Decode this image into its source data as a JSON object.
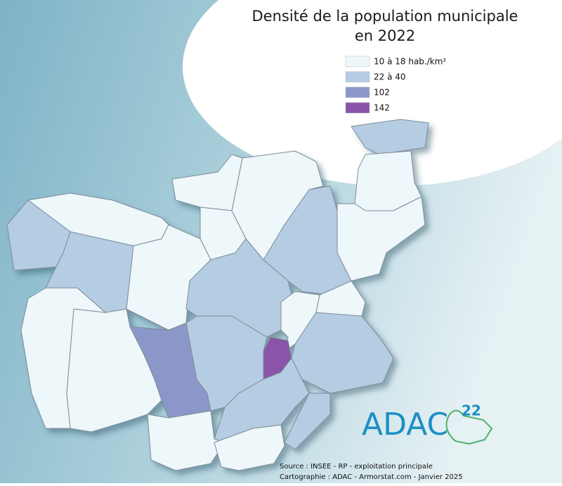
{
  "title": [
    "Densité de la population municipale",
    "en 2022"
  ],
  "legend": [
    {
      "label": "10 à 18 hab./km²",
      "color": "#eef7f9"
    },
    {
      "label": "22 à 40",
      "color": "#b5cde2"
    },
    {
      "label": "102",
      "color": "#8c97c9"
    },
    {
      "label": "142",
      "color": "#8a55a8"
    }
  ],
  "logo": {
    "text": "ADAC",
    "number": "22"
  },
  "source": [
    "Source : INSEE - RP - exploitation principale",
    "Cartographie : ADAC - Armorstat.com - Janvier 2025"
  ]
}
